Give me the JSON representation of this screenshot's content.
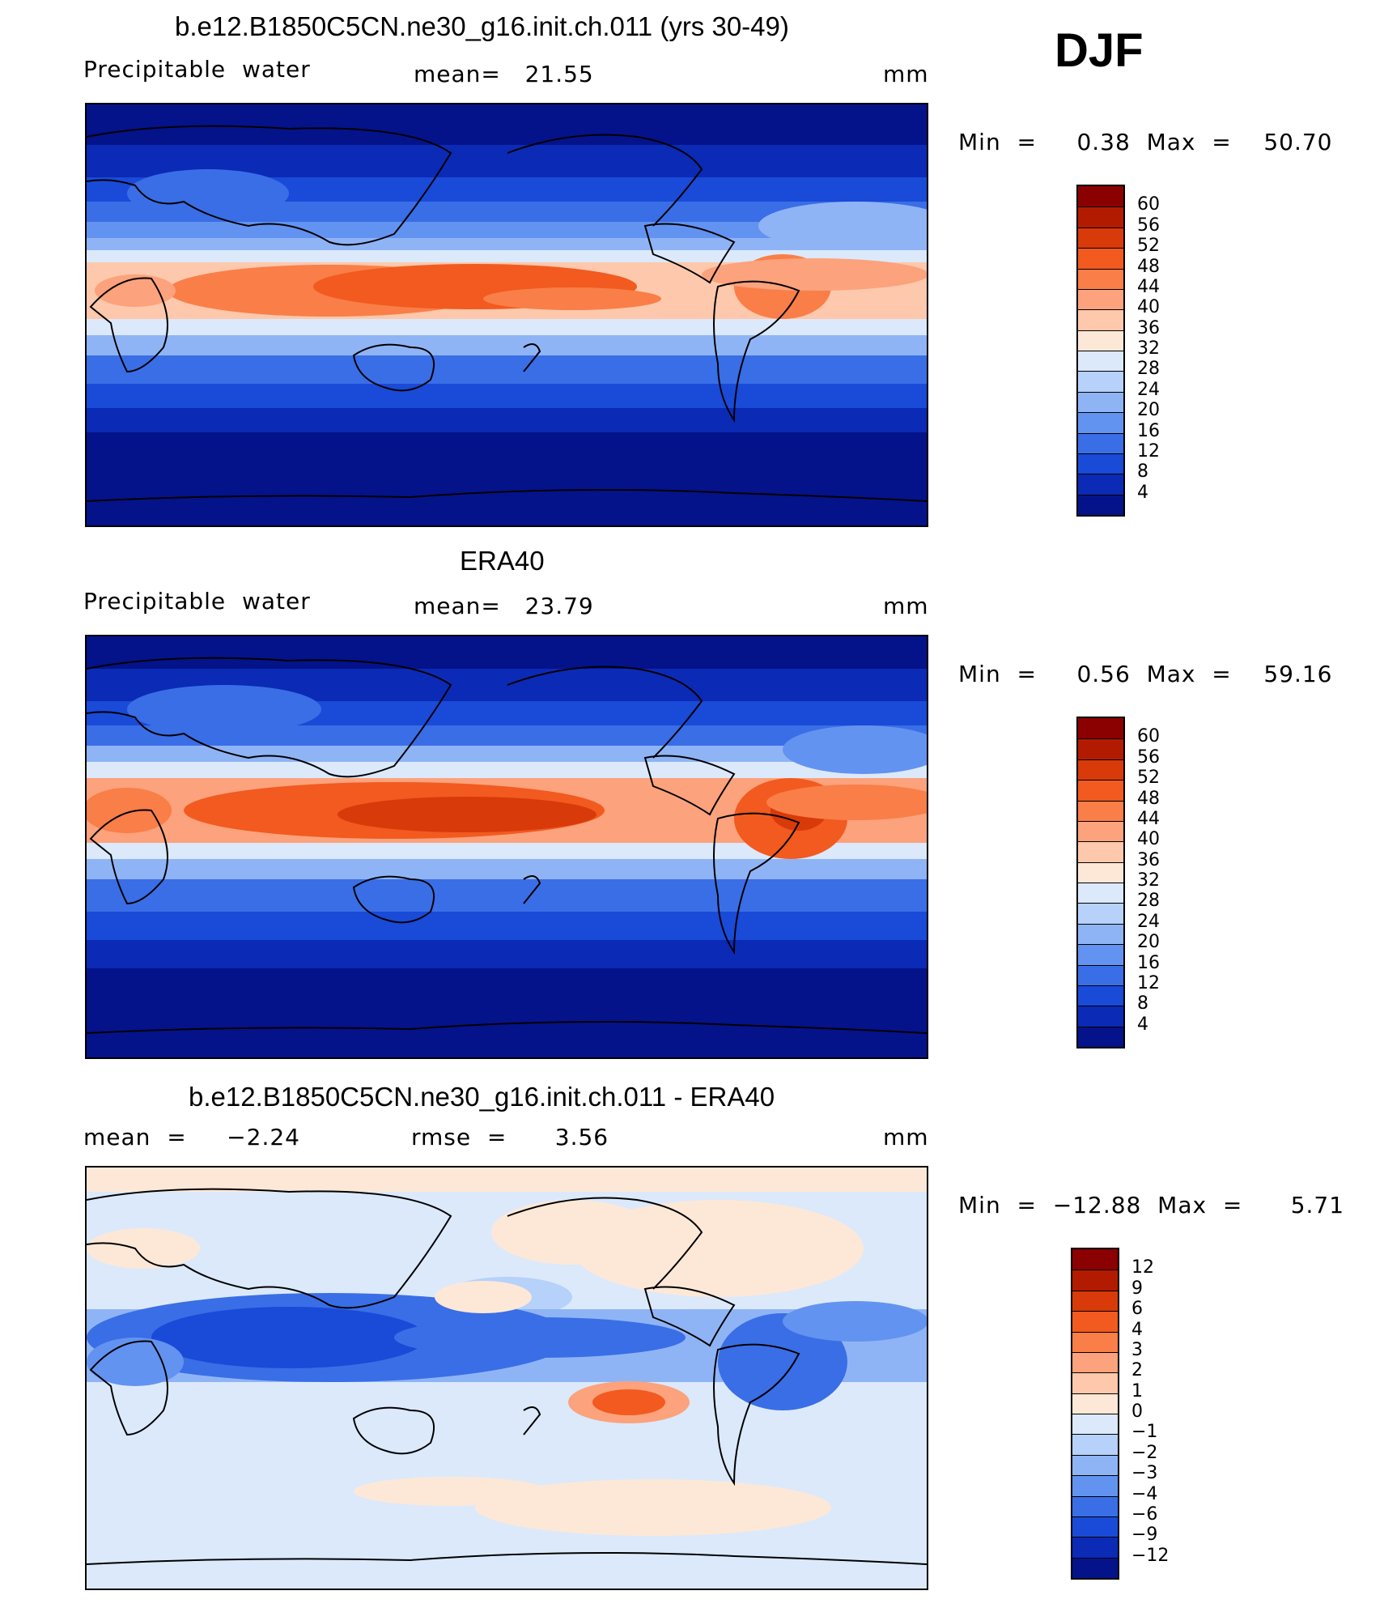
{
  "season": "DJF",
  "panels": [
    {
      "title": "b.e12.B1850C5CN.ne30_g16.init.ch.011 (yrs 30-49)",
      "left_label": "Precipitable  water",
      "stat_text": "mean=   21.55",
      "rmse_text": "",
      "units": "mm",
      "minmax_text": "Min  =     0.38  Max  =    50.70",
      "kind": "model"
    },
    {
      "title": "ERA40",
      "left_label": "Precipitable  water",
      "stat_text": "mean=   23.79",
      "rmse_text": "",
      "units": "mm",
      "minmax_text": "Min  =     0.56  Max  =    59.16",
      "kind": "obs"
    },
    {
      "title": "b.e12.B1850C5CN.ne30_g16.init.ch.011 - ERA40",
      "left_label": "mean  =     −2.24",
      "stat_text": "rmse  =      3.56",
      "rmse_text": "",
      "units": "mm",
      "minmax_text": "Min  =  −12.88  Max  =      5.71",
      "kind": "diff"
    }
  ],
  "colorbars": [
    {
      "labels": [
        "60",
        "56",
        "52",
        "48",
        "44",
        "40",
        "36",
        "32",
        "28",
        "24",
        "20",
        "16",
        "12",
        "8",
        "4"
      ],
      "colors": [
        "#8b0000",
        "#b31b00",
        "#d93a0a",
        "#f25a20",
        "#fa7e48",
        "#fca27c",
        "#fdc8ab",
        "#fde8d7",
        "#dbe9fb",
        "#b6d1fa",
        "#8fb4f5",
        "#6393f0",
        "#3a6ee6",
        "#1a4ad8",
        "#0b2ab5",
        "#04138a"
      ]
    },
    {
      "labels": [
        "60",
        "56",
        "52",
        "48",
        "44",
        "40",
        "36",
        "32",
        "28",
        "24",
        "20",
        "16",
        "12",
        "8",
        "4"
      ],
      "colors": [
        "#8b0000",
        "#b31b00",
        "#d93a0a",
        "#f25a20",
        "#fa7e48",
        "#fca27c",
        "#fdc8ab",
        "#fde8d7",
        "#dbe9fb",
        "#b6d1fa",
        "#8fb4f5",
        "#6393f0",
        "#3a6ee6",
        "#1a4ad8",
        "#0b2ab5",
        "#04138a"
      ]
    },
    {
      "labels": [
        "12",
        "9",
        "6",
        "4",
        "3",
        "2",
        "1",
        "0",
        "−1",
        "−2",
        "−3",
        "−4",
        "−6",
        "−9",
        "−12"
      ],
      "colors": [
        "#8b0000",
        "#b31b00",
        "#d93a0a",
        "#f25a20",
        "#fa7e48",
        "#fca27c",
        "#fdc8ab",
        "#fde8d7",
        "#dbe9fb",
        "#b6d1fa",
        "#8fb4f5",
        "#6393f0",
        "#3a6ee6",
        "#1a4ad8",
        "#0b2ab5",
        "#04138a"
      ]
    }
  ]
}
